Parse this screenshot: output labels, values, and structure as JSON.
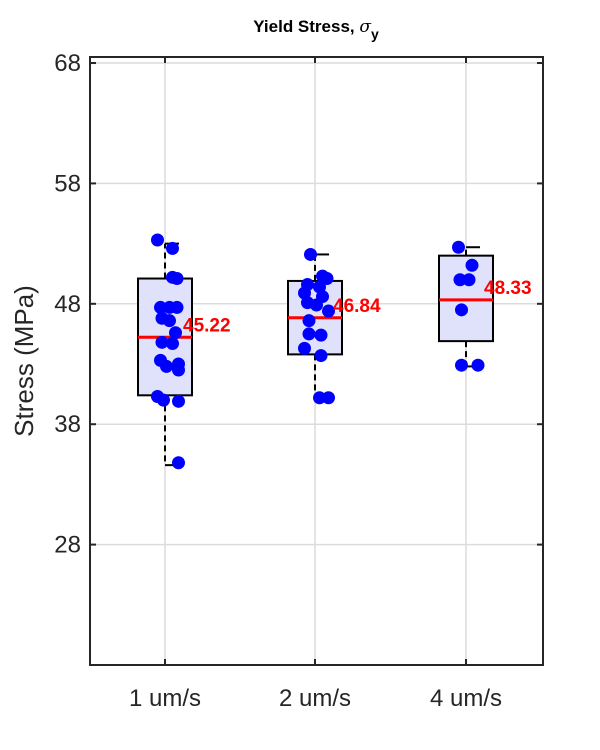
{
  "chart_data": {
    "type": "box",
    "title": "Yield Stress, ",
    "title_symbol": "σ",
    "title_subscript": "y",
    "xlabel": "",
    "ylabel": "Stress (MPa)",
    "ylim": [
      18,
      68.5
    ],
    "yticks": [
      28,
      38,
      48,
      58,
      68
    ],
    "grid": true,
    "colors": {
      "box_fill": "#e0e1fb",
      "box_edge": "#000000",
      "median": "#ff0000",
      "points": "#0000ff",
      "median_label": "#ff0000",
      "grid": "#dcdcdc",
      "axes": "#262626"
    },
    "categories": [
      "1 um/s",
      "2 um/s",
      "4 um/s"
    ],
    "boxes": [
      {
        "q1": 40.4,
        "median": 45.22,
        "q3": 50.1,
        "whisker_low": 34.6,
        "whisker_high": 53.0,
        "median_label": "45.22"
      },
      {
        "q1": 43.8,
        "median": 46.84,
        "q3": 49.9,
        "whisker_low": 40.0,
        "whisker_high": 52.1,
        "median_label": "46.84"
      },
      {
        "q1": 44.9,
        "median": 48.33,
        "q3": 52.0,
        "whisker_low": 42.8,
        "whisker_high": 52.7,
        "median_label": "48.33"
      }
    ],
    "points": [
      {
        "category": "1 um/s",
        "x_offset": -0.05,
        "y": 53.3
      },
      {
        "category": "1 um/s",
        "x_offset": 0.05,
        "y": 52.6
      },
      {
        "category": "1 um/s",
        "x_offset": 0.05,
        "y": 50.2
      },
      {
        "category": "1 um/s",
        "x_offset": 0.08,
        "y": 50.1
      },
      {
        "category": "1 um/s",
        "x_offset": -0.03,
        "y": 47.7
      },
      {
        "category": "1 um/s",
        "x_offset": 0.03,
        "y": 47.7
      },
      {
        "category": "1 um/s",
        "x_offset": 0.08,
        "y": 47.7
      },
      {
        "category": "1 um/s",
        "x_offset": -0.02,
        "y": 46.8
      },
      {
        "category": "1 um/s",
        "x_offset": 0.03,
        "y": 46.6
      },
      {
        "category": "1 um/s",
        "x_offset": 0.07,
        "y": 45.6
      },
      {
        "category": "1 um/s",
        "x_offset": -0.02,
        "y": 44.8
      },
      {
        "category": "1 um/s",
        "x_offset": 0.05,
        "y": 44.7
      },
      {
        "category": "1 um/s",
        "x_offset": -0.03,
        "y": 43.3
      },
      {
        "category": "1 um/s",
        "x_offset": 0.09,
        "y": 43.0
      },
      {
        "category": "1 um/s",
        "x_offset": 0.01,
        "y": 42.8
      },
      {
        "category": "1 um/s",
        "x_offset": 0.09,
        "y": 42.5
      },
      {
        "category": "1 um/s",
        "x_offset": -0.05,
        "y": 40.3
      },
      {
        "category": "1 um/s",
        "x_offset": -0.01,
        "y": 40.0
      },
      {
        "category": "1 um/s",
        "x_offset": 0.09,
        "y": 39.9
      },
      {
        "category": "1 um/s",
        "x_offset": 0.09,
        "y": 34.8
      },
      {
        "category": "2 um/s",
        "x_offset": -0.03,
        "y": 52.1
      },
      {
        "category": "2 um/s",
        "x_offset": 0.05,
        "y": 50.3
      },
      {
        "category": "2 um/s",
        "x_offset": 0.08,
        "y": 50.1
      },
      {
        "category": "2 um/s",
        "x_offset": -0.05,
        "y": 49.6
      },
      {
        "category": "2 um/s",
        "x_offset": 0.03,
        "y": 49.4
      },
      {
        "category": "2 um/s",
        "x_offset": -0.07,
        "y": 48.9
      },
      {
        "category": "2 um/s",
        "x_offset": 0.05,
        "y": 48.6
      },
      {
        "category": "2 um/s",
        "x_offset": -0.05,
        "y": 48.1
      },
      {
        "category": "2 um/s",
        "x_offset": 0.01,
        "y": 47.9
      },
      {
        "category": "2 um/s",
        "x_offset": 0.09,
        "y": 47.4
      },
      {
        "category": "2 um/s",
        "x_offset": -0.04,
        "y": 46.6
      },
      {
        "category": "2 um/s",
        "x_offset": -0.04,
        "y": 45.5
      },
      {
        "category": "2 um/s",
        "x_offset": 0.04,
        "y": 45.4
      },
      {
        "category": "2 um/s",
        "x_offset": -0.07,
        "y": 44.3
      },
      {
        "category": "2 um/s",
        "x_offset": 0.04,
        "y": 43.7
      },
      {
        "category": "2 um/s",
        "x_offset": 0.03,
        "y": 40.2
      },
      {
        "category": "2 um/s",
        "x_offset": 0.09,
        "y": 40.2
      },
      {
        "category": "4 um/s",
        "x_offset": -0.05,
        "y": 52.7
      },
      {
        "category": "4 um/s",
        "x_offset": 0.04,
        "y": 51.2
      },
      {
        "category": "4 um/s",
        "x_offset": -0.04,
        "y": 50.0
      },
      {
        "category": "4 um/s",
        "x_offset": 0.02,
        "y": 50.0
      },
      {
        "category": "4 um/s",
        "x_offset": -0.03,
        "y": 47.5
      },
      {
        "category": "4 um/s",
        "x_offset": -0.03,
        "y": 42.9
      },
      {
        "category": "4 um/s",
        "x_offset": 0.08,
        "y": 42.9
      }
    ]
  }
}
